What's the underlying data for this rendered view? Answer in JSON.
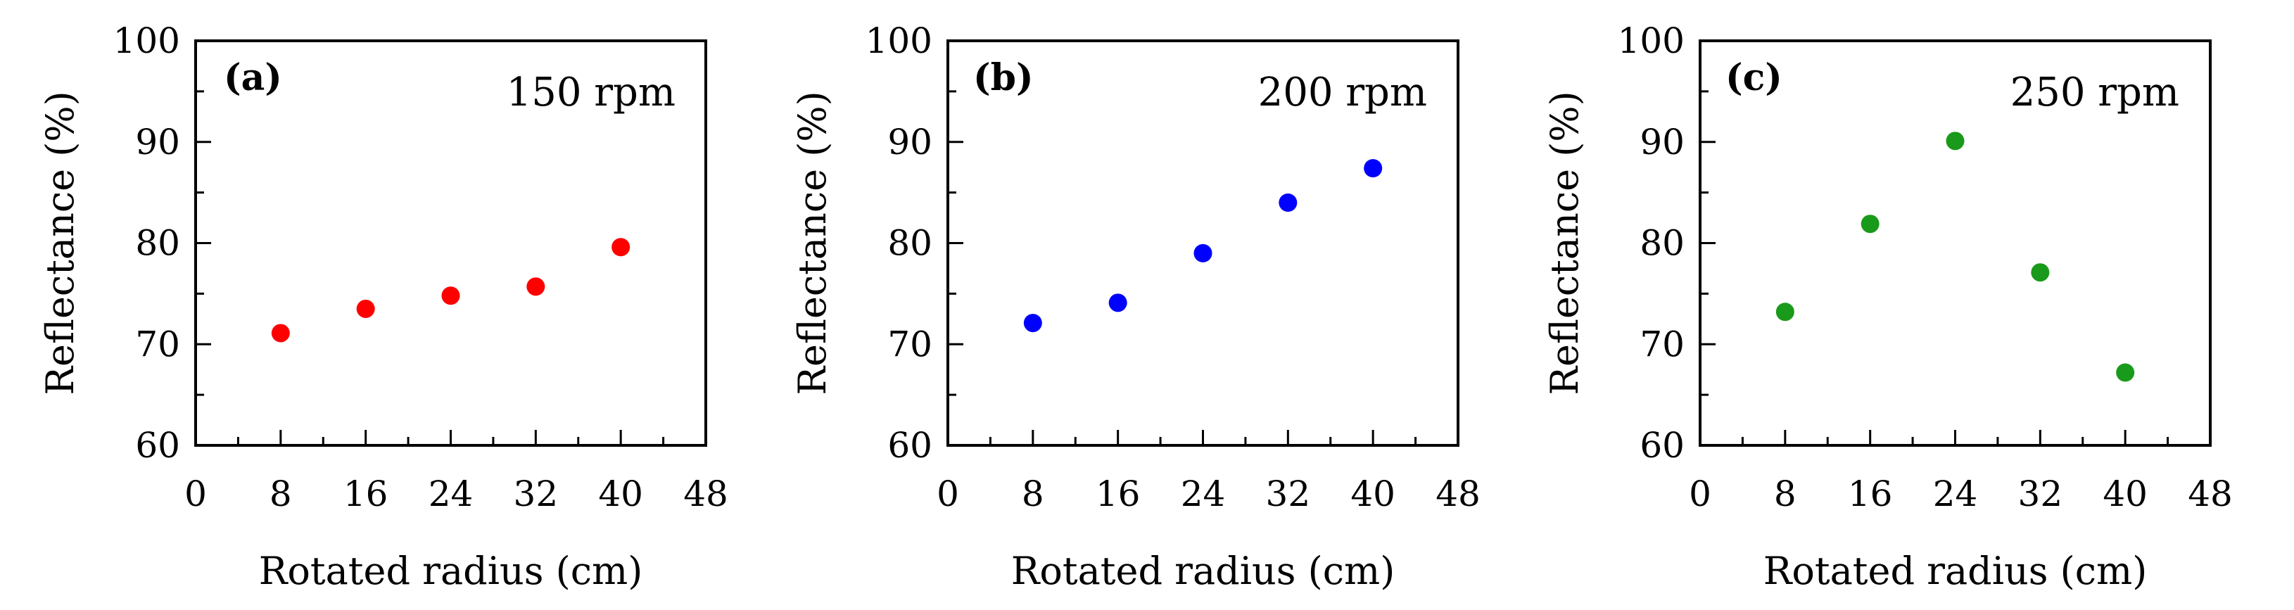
{
  "chart_data": [
    {
      "type": "scatter",
      "panel_label": "(a)",
      "annotation": "150 rpm",
      "xlabel": "Rotated radius (cm)",
      "ylabel": "Reflectance (%)",
      "xlim": [
        0,
        48
      ],
      "ylim": [
        60,
        100
      ],
      "xticks": [
        "0",
        "8",
        "16",
        "24",
        "32",
        "40",
        "48"
      ],
      "yticks": [
        "60",
        "70",
        "80",
        "90",
        "100"
      ],
      "color": "#ff0000",
      "x": [
        8,
        16,
        24,
        32,
        40
      ],
      "y": [
        71.1,
        73.5,
        74.8,
        75.7,
        79.6
      ]
    },
    {
      "type": "scatter",
      "panel_label": "(b)",
      "annotation": "200 rpm",
      "xlabel": "Rotated radius (cm)",
      "ylabel": "Reflectance (%)",
      "xlim": [
        0,
        48
      ],
      "ylim": [
        60,
        100
      ],
      "xticks": [
        "0",
        "8",
        "16",
        "24",
        "32",
        "40",
        "48"
      ],
      "yticks": [
        "60",
        "70",
        "80",
        "90",
        "100"
      ],
      "color": "#0000ff",
      "x": [
        8,
        16,
        24,
        32,
        40
      ],
      "y": [
        72.1,
        74.1,
        79.0,
        84.0,
        87.4
      ]
    },
    {
      "type": "scatter",
      "panel_label": "(c)",
      "annotation": "250 rpm",
      "xlabel": "Rotated radius (cm)",
      "ylabel": "Reflectance (%)",
      "xlim": [
        0,
        48
      ],
      "ylim": [
        60,
        100
      ],
      "xticks": [
        "0",
        "8",
        "16",
        "24",
        "32",
        "40",
        "48"
      ],
      "yticks": [
        "60",
        "70",
        "80",
        "90",
        "100"
      ],
      "color": "#1a9a1a",
      "x": [
        8,
        16,
        24,
        32,
        40
      ],
      "y": [
        73.2,
        81.9,
        90.1,
        77.1,
        67.2
      ]
    }
  ]
}
